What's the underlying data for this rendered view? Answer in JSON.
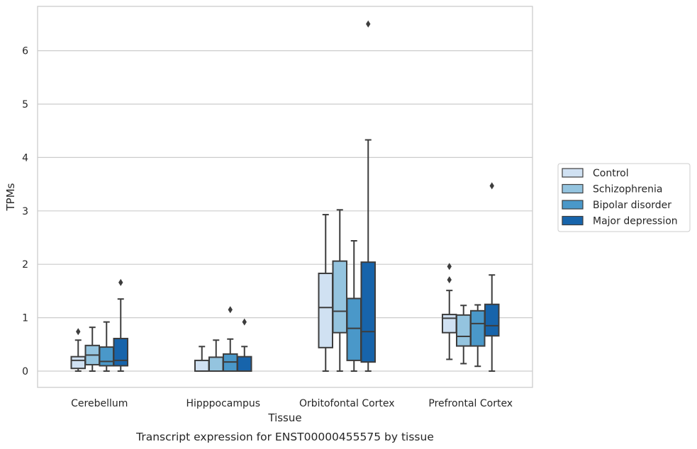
{
  "chart_data": {
    "type": "box",
    "caption": "Transcript expression for ENST00000455575 by tissue",
    "xlabel": "Tissue",
    "ylabel": "TPMs",
    "ylim": [
      -0.32,
      6.85
    ],
    "yticks": [
      0,
      1,
      2,
      3,
      4,
      5,
      6
    ],
    "grid": true,
    "legend_position": "right",
    "categories": [
      "Cerebellum",
      "Hipppocampus",
      "Orbitofontal Cortex",
      "Prefrontal Cortex"
    ],
    "series": [
      {
        "name": "Control",
        "color": "#d0e1f2",
        "boxes": [
          {
            "whislo": 0.0,
            "q1": 0.05,
            "med": 0.2,
            "q3": 0.27,
            "whishi": 0.58,
            "fliers": [
              0.74
            ]
          },
          {
            "whislo": 0.0,
            "q1": 0.0,
            "med": 0.0,
            "q3": 0.2,
            "whishi": 0.46,
            "fliers": []
          },
          {
            "whislo": 0.0,
            "q1": 0.44,
            "med": 1.19,
            "q3": 1.83,
            "whishi": 2.93,
            "fliers": []
          },
          {
            "whislo": 0.22,
            "q1": 0.72,
            "med": 0.99,
            "q3": 1.06,
            "whishi": 1.51,
            "fliers": [
              1.71,
              1.96
            ]
          }
        ]
      },
      {
        "name": "Schizophrenia",
        "color": "#94c4df",
        "boxes": [
          {
            "whislo": 0.0,
            "q1": 0.12,
            "med": 0.3,
            "q3": 0.48,
            "whishi": 0.82,
            "fliers": []
          },
          {
            "whislo": 0.0,
            "q1": 0.0,
            "med": 0.0,
            "q3": 0.26,
            "whishi": 0.58,
            "fliers": []
          },
          {
            "whislo": 0.0,
            "q1": 0.72,
            "med": 1.12,
            "q3": 2.06,
            "whishi": 3.02,
            "fliers": []
          },
          {
            "whislo": 0.14,
            "q1": 0.47,
            "med": 0.65,
            "q3": 1.05,
            "whishi": 1.23,
            "fliers": []
          }
        ]
      },
      {
        "name": "Bipolar disorder",
        "color": "#4a98c9",
        "boxes": [
          {
            "whislo": 0.0,
            "q1": 0.1,
            "med": 0.18,
            "q3": 0.45,
            "whishi": 0.92,
            "fliers": []
          },
          {
            "whislo": 0.0,
            "q1": 0.0,
            "med": 0.17,
            "q3": 0.32,
            "whishi": 0.6,
            "fliers": [
              1.15
            ]
          },
          {
            "whislo": 0.0,
            "q1": 0.2,
            "med": 0.8,
            "q3": 1.36,
            "whishi": 2.44,
            "fliers": []
          },
          {
            "whislo": 0.09,
            "q1": 0.47,
            "med": 0.89,
            "q3": 1.13,
            "whishi": 1.24,
            "fliers": []
          }
        ]
      },
      {
        "name": "Major depression",
        "color": "#1764ab",
        "boxes": [
          {
            "whislo": 0.0,
            "q1": 0.1,
            "med": 0.2,
            "q3": 0.61,
            "whishi": 1.35,
            "fliers": [
              1.66
            ]
          },
          {
            "whislo": 0.0,
            "q1": 0.0,
            "med": 0.0,
            "q3": 0.27,
            "whishi": 0.46,
            "fliers": [
              0.92
            ]
          },
          {
            "whislo": 0.0,
            "q1": 0.17,
            "med": 0.74,
            "q3": 2.04,
            "whishi": 4.33,
            "fliers": [
              6.5
            ]
          },
          {
            "whislo": 0.0,
            "q1": 0.66,
            "med": 0.85,
            "q3": 1.25,
            "whishi": 1.8,
            "fliers": [
              3.47
            ]
          }
        ]
      }
    ]
  }
}
